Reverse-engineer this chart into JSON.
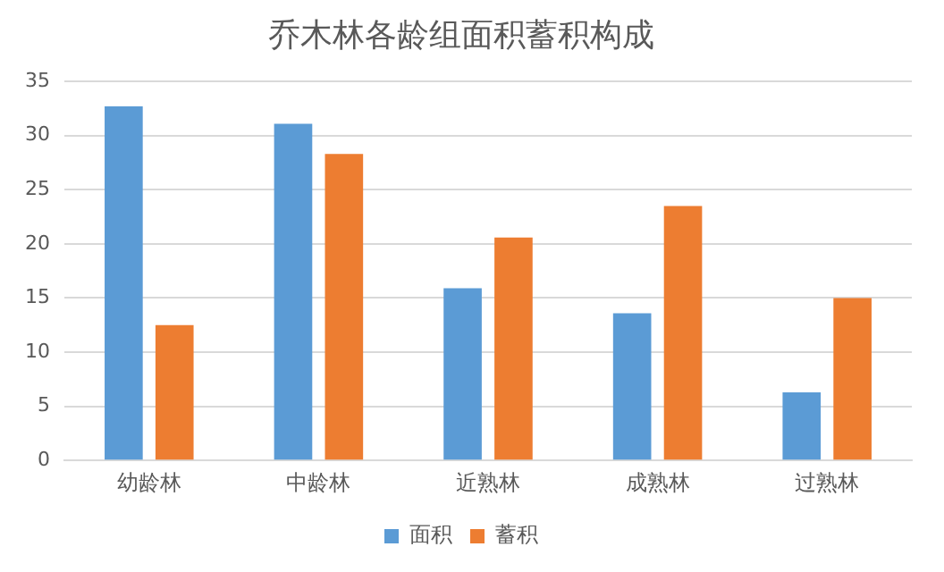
{
  "chart_data": {
    "type": "bar",
    "title": "乔木林各龄组面积蓄积构成",
    "categories": [
      "幼龄林",
      "中龄林",
      "近熟林",
      "成熟林",
      "过熟林"
    ],
    "series": [
      {
        "name": "面积",
        "color": "#5b9bd5",
        "values": [
          32.7,
          31.1,
          15.9,
          13.6,
          6.3
        ]
      },
      {
        "name": "蓄积",
        "color": "#ed7d31",
        "values": [
          12.5,
          28.3,
          20.6,
          23.5,
          15.0
        ]
      }
    ],
    "ylim": [
      0,
      35
    ],
    "yticks": [
      0,
      5,
      10,
      15,
      20,
      25,
      30,
      35
    ],
    "grid": "y",
    "legend": "bottom"
  }
}
